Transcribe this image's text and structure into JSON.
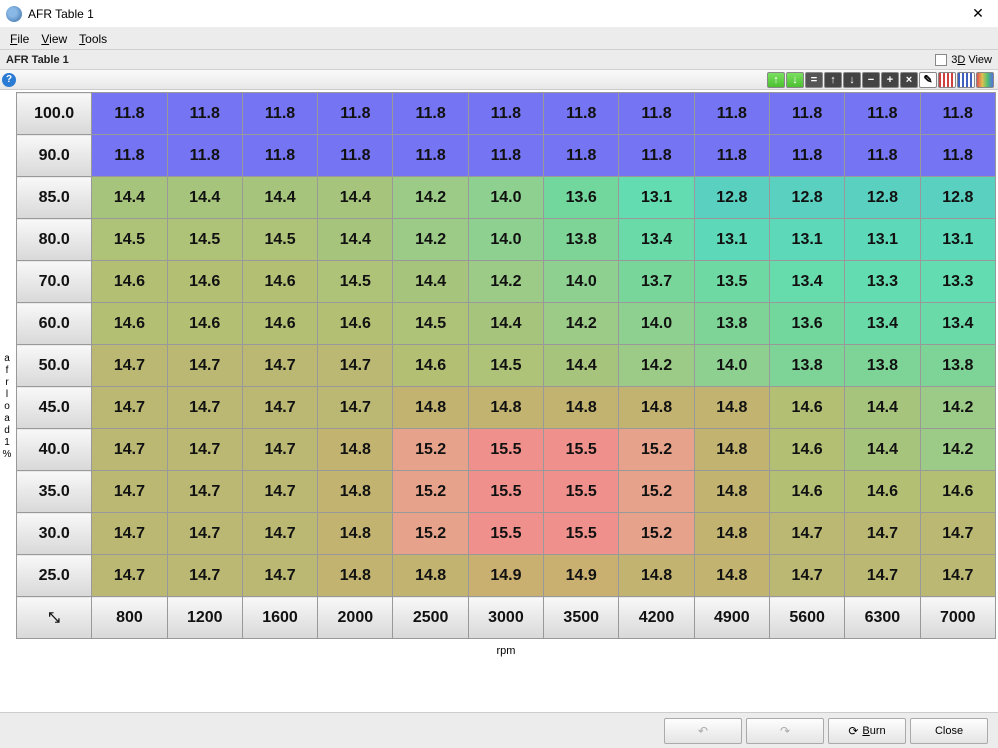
{
  "window": {
    "title": "AFR Table 1"
  },
  "menu": {
    "file": "File",
    "view": "View",
    "tools": "Tools"
  },
  "header": {
    "label": "AFR Table 1",
    "view3d": "3D View"
  },
  "toolbar": {
    "help": "?",
    "btn_dec_g": "↓",
    "btn_inc_g": "↑",
    "btn_eq": "=",
    "btn_up": "↑",
    "btn_down": "↓",
    "btn_minus": "−",
    "btn_plus": "+",
    "btn_x": "×",
    "btn_pencil": "✎",
    "btn_s1": "",
    "btn_s2": "",
    "btn_rb": ""
  },
  "axes": {
    "y_label": "afrload1 %",
    "x_label": "rpm",
    "y_headers": [
      "100.0",
      "90.0",
      "85.0",
      "80.0",
      "70.0",
      "60.0",
      "50.0",
      "45.0",
      "40.0",
      "35.0",
      "30.0",
      "25.0"
    ],
    "x_headers": [
      "800",
      "1200",
      "1600",
      "2000",
      "2500",
      "3000",
      "3500",
      "4200",
      "4900",
      "5600",
      "6300",
      "7000"
    ]
  },
  "grid": {
    "rows": [
      [
        "11.8",
        "11.8",
        "11.8",
        "11.8",
        "11.8",
        "11.8",
        "11.8",
        "11.8",
        "11.8",
        "11.8",
        "11.8",
        "11.8"
      ],
      [
        "11.8",
        "11.8",
        "11.8",
        "11.8",
        "11.8",
        "11.8",
        "11.8",
        "11.8",
        "11.8",
        "11.8",
        "11.8",
        "11.8"
      ],
      [
        "14.4",
        "14.4",
        "14.4",
        "14.4",
        "14.2",
        "14.0",
        "13.6",
        "13.1",
        "12.8",
        "12.8",
        "12.8",
        "12.8"
      ],
      [
        "14.5",
        "14.5",
        "14.5",
        "14.4",
        "14.2",
        "14.0",
        "13.8",
        "13.4",
        "13.1",
        "13.1",
        "13.1",
        "13.1"
      ],
      [
        "14.6",
        "14.6",
        "14.6",
        "14.5",
        "14.4",
        "14.2",
        "14.0",
        "13.7",
        "13.5",
        "13.4",
        "13.3",
        "13.3"
      ],
      [
        "14.6",
        "14.6",
        "14.6",
        "14.6",
        "14.5",
        "14.4",
        "14.2",
        "14.0",
        "13.8",
        "13.6",
        "13.4",
        "13.4"
      ],
      [
        "14.7",
        "14.7",
        "14.7",
        "14.7",
        "14.6",
        "14.5",
        "14.4",
        "14.2",
        "14.0",
        "13.8",
        "13.8",
        "13.8"
      ],
      [
        "14.7",
        "14.7",
        "14.7",
        "14.7",
        "14.8",
        "14.8",
        "14.8",
        "14.8",
        "14.8",
        "14.6",
        "14.4",
        "14.2"
      ],
      [
        "14.7",
        "14.7",
        "14.7",
        "14.8",
        "15.2",
        "15.5",
        "15.5",
        "15.2",
        "14.8",
        "14.6",
        "14.4",
        "14.2"
      ],
      [
        "14.7",
        "14.7",
        "14.7",
        "14.8",
        "15.2",
        "15.5",
        "15.5",
        "15.2",
        "14.8",
        "14.6",
        "14.6",
        "14.6"
      ],
      [
        "14.7",
        "14.7",
        "14.7",
        "14.8",
        "15.2",
        "15.5",
        "15.5",
        "15.2",
        "14.8",
        "14.7",
        "14.7",
        "14.7"
      ],
      [
        "14.7",
        "14.7",
        "14.7",
        "14.8",
        "14.8",
        "14.9",
        "14.9",
        "14.8",
        "14.8",
        "14.7",
        "14.7",
        "14.7"
      ]
    ],
    "colors": [
      [
        "#7574f2",
        "#7574f2",
        "#7574f2",
        "#7574f2",
        "#7574f2",
        "#7574f2",
        "#7574f2",
        "#7574f2",
        "#7574f2",
        "#7574f2",
        "#7574f2",
        "#7574f2"
      ],
      [
        "#7574f2",
        "#7574f2",
        "#7574f2",
        "#7574f2",
        "#7574f2",
        "#7574f2",
        "#7574f2",
        "#7574f2",
        "#7574f2",
        "#7574f2",
        "#7574f2",
        "#7574f2"
      ],
      [
        "#a7c47c",
        "#a7c47c",
        "#a7c47c",
        "#a7c47c",
        "#9bcb86",
        "#8dd090",
        "#72d79c",
        "#62dcb0",
        "#5ad0c0",
        "#5ad0c0",
        "#5ad0c0",
        "#5ad0c0"
      ],
      [
        "#aec278",
        "#aec278",
        "#aec278",
        "#a7c47c",
        "#9bcb86",
        "#8dd090",
        "#7dd496",
        "#6adba8",
        "#5dd8b8",
        "#5dd8b8",
        "#5dd8b8",
        "#5dd8b8"
      ],
      [
        "#b3c074",
        "#b3c074",
        "#b3c074",
        "#aec278",
        "#a7c47c",
        "#9bcb86",
        "#8dd090",
        "#78d69a",
        "#6ed9a2",
        "#66dbac",
        "#64dcb2",
        "#64dcb2"
      ],
      [
        "#b3c074",
        "#b3c074",
        "#b3c074",
        "#b3c074",
        "#aec278",
        "#a7c47c",
        "#9bcb86",
        "#8dd090",
        "#7dd496",
        "#72d79c",
        "#6adba8",
        "#6adba8"
      ],
      [
        "#bab872",
        "#bab872",
        "#bab872",
        "#bab872",
        "#b3c074",
        "#aec278",
        "#a7c47c",
        "#9bcb86",
        "#8dd090",
        "#7dd496",
        "#7dd496",
        "#7dd496"
      ],
      [
        "#bab872",
        "#bab872",
        "#bab872",
        "#bab872",
        "#c2b470",
        "#c2b470",
        "#c2b470",
        "#c2b470",
        "#c2b470",
        "#b3c074",
        "#a7c47c",
        "#9bcb86"
      ],
      [
        "#bab872",
        "#bab872",
        "#bab872",
        "#c2b470",
        "#e6a28a",
        "#f0908c",
        "#f0908c",
        "#e6a28a",
        "#c2b470",
        "#b3c074",
        "#a7c47c",
        "#9bcb86"
      ],
      [
        "#bab872",
        "#bab872",
        "#bab872",
        "#c2b470",
        "#e6a28a",
        "#f0908c",
        "#f0908c",
        "#e6a28a",
        "#c2b470",
        "#b3c074",
        "#b3c074",
        "#b3c074"
      ],
      [
        "#bab872",
        "#bab872",
        "#bab872",
        "#c2b470",
        "#e6a28a",
        "#f0908c",
        "#f0908c",
        "#e6a28a",
        "#c2b470",
        "#bab872",
        "#bab872",
        "#bab872"
      ],
      [
        "#bab872",
        "#bab872",
        "#bab872",
        "#c2b470",
        "#c2b470",
        "#cab070",
        "#cab070",
        "#c2b470",
        "#c2b470",
        "#bab872",
        "#bab872",
        "#bab872"
      ]
    ]
  },
  "footer": {
    "undo": "↶",
    "redo": "↷",
    "burn": "Burn",
    "close": "Close"
  },
  "corner_icon": "⤡"
}
